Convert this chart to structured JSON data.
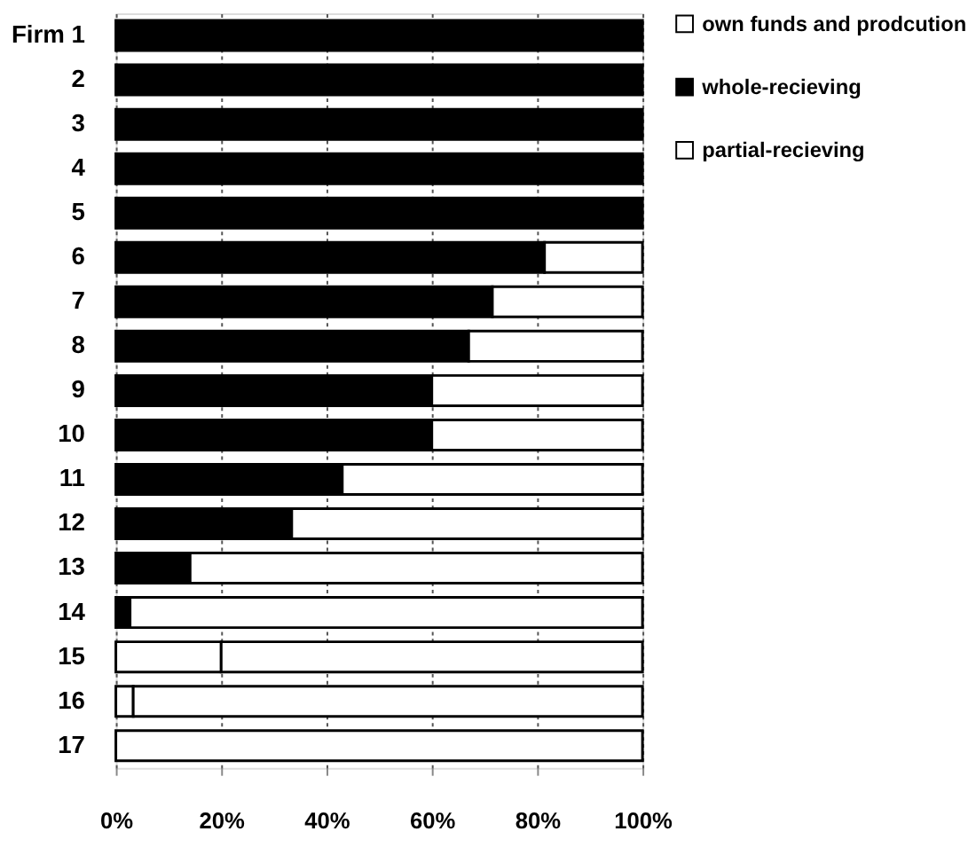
{
  "chart_data": {
    "type": "bar",
    "orientation": "horizontal",
    "stacked": true,
    "categories": [
      "Firm 1",
      "2",
      "3",
      "4",
      "5",
      "6",
      "7",
      "8",
      "9",
      "10",
      "11",
      "12",
      "13",
      "14",
      "15",
      "16",
      "17"
    ],
    "series": [
      {
        "name": "partial-recieving",
        "color": "#ffffff",
        "values": [
          0,
          0,
          0,
          0,
          0,
          0,
          0,
          0,
          0,
          0,
          0,
          0,
          0,
          0,
          20,
          3.3,
          0
        ]
      },
      {
        "name": "whole-recieving",
        "color": "#000000",
        "values": [
          100,
          100,
          100,
          100,
          100,
          81.4,
          71.5,
          67,
          60,
          60,
          43,
          33.4,
          14.1,
          2.7,
          0,
          0,
          0
        ]
      },
      {
        "name": "own funds and prodcution",
        "color": "#ffffff",
        "values": [
          0,
          0,
          0,
          0,
          0,
          18.6,
          28.5,
          33,
          40,
          40,
          57,
          66.6,
          85.9,
          97.3,
          80,
          96.7,
          100
        ]
      }
    ],
    "xlim": [
      0,
      100
    ],
    "xticks": [
      {
        "value": 0,
        "label": "0%"
      },
      {
        "value": 20,
        "label": "20%"
      },
      {
        "value": 40,
        "label": "40%"
      },
      {
        "value": 60,
        "label": "60%"
      },
      {
        "value": 80,
        "label": "80%"
      },
      {
        "value": 100,
        "label": "100%"
      }
    ],
    "grid": "x",
    "legend": "right"
  }
}
